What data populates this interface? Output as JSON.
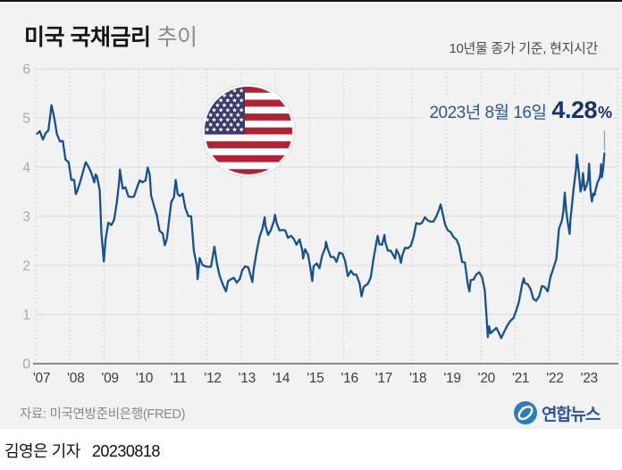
{
  "header": {
    "title_main": "미국 국채금리",
    "title_sub": "추이",
    "subtitle": "10년물 종가 기준, 현지시간"
  },
  "annotation": {
    "date": "2023년 8월 16일",
    "value": "4.28",
    "unit": "%"
  },
  "source": "자료: 미국연방준비은행(FRED)",
  "logo": {
    "text": "연합뉴스"
  },
  "footer": {
    "credit": "김영은 기자",
    "date": "20230818"
  },
  "colors": {
    "background": "#f2f2f2",
    "line": "#17518f",
    "grid": "#dcdcdc",
    "grid_dotted": "#cbcbcb",
    "baseline": "#6a6a6a",
    "ytick_text": "#a8a8a8",
    "xtick_text": "#3e3e3e",
    "pointer": "#9a9a9a",
    "annotation_date": "#2b5597",
    "annotation_value": "#16336e",
    "flag_red": "#B22234",
    "flag_blue": "#3C3B6E",
    "flag_white": "#ffffff",
    "logo_blue": "#2e7cb8",
    "logo_text_blue": "#2a55a0"
  },
  "chart_data": {
    "type": "line",
    "title": "미국 국채금리 추이",
    "subtitle": "10년물 종가 기준, 현지시간",
    "xlabel": "",
    "ylabel": "",
    "units": "%",
    "grid": true,
    "legend": "none",
    "ylim": [
      0,
      6
    ],
    "yticks": [
      0,
      1,
      2,
      3,
      4,
      5,
      6
    ],
    "xticks": [
      "'07",
      "'08",
      "'09",
      "'10",
      "'11",
      "'12",
      "'13",
      "'14",
      "'15",
      "'16",
      "'17",
      "'18",
      "'19",
      "'20",
      "'21",
      "'22",
      "'23"
    ],
    "x_start": 2007.0,
    "x_end": 2024.0,
    "annotation": {
      "x": 2023.62,
      "y": 4.28,
      "label_date": "2023년 8월 16일",
      "label_value": "4.28%"
    },
    "points": [
      [
        2007.04,
        4.68
      ],
      [
        2007.12,
        4.73
      ],
      [
        2007.21,
        4.56
      ],
      [
        2007.29,
        4.69
      ],
      [
        2007.37,
        4.75
      ],
      [
        2007.42,
        5.03
      ],
      [
        2007.46,
        5.26
      ],
      [
        2007.54,
        5.0
      ],
      [
        2007.62,
        4.67
      ],
      [
        2007.71,
        4.52
      ],
      [
        2007.79,
        4.53
      ],
      [
        2007.87,
        4.15
      ],
      [
        2007.96,
        4.1
      ],
      [
        2008.04,
        3.74
      ],
      [
        2008.12,
        3.74
      ],
      [
        2008.17,
        3.45
      ],
      [
        2008.21,
        3.51
      ],
      [
        2008.29,
        3.68
      ],
      [
        2008.37,
        3.88
      ],
      [
        2008.46,
        4.1
      ],
      [
        2008.54,
        4.01
      ],
      [
        2008.62,
        3.89
      ],
      [
        2008.71,
        3.69
      ],
      [
        2008.75,
        3.85
      ],
      [
        2008.79,
        3.81
      ],
      [
        2008.87,
        3.53
      ],
      [
        2008.92,
        2.65
      ],
      [
        2008.99,
        2.08
      ],
      [
        2009.04,
        2.52
      ],
      [
        2009.12,
        2.87
      ],
      [
        2009.21,
        2.82
      ],
      [
        2009.29,
        2.93
      ],
      [
        2009.37,
        3.29
      ],
      [
        2009.44,
        3.72
      ],
      [
        2009.46,
        3.95
      ],
      [
        2009.54,
        3.56
      ],
      [
        2009.62,
        3.59
      ],
      [
        2009.71,
        3.4
      ],
      [
        2009.79,
        3.39
      ],
      [
        2009.87,
        3.4
      ],
      [
        2009.96,
        3.59
      ],
      [
        2010.04,
        3.73
      ],
      [
        2010.12,
        3.69
      ],
      [
        2010.21,
        3.73
      ],
      [
        2010.27,
        3.99
      ],
      [
        2010.33,
        3.85
      ],
      [
        2010.37,
        3.42
      ],
      [
        2010.46,
        3.2
      ],
      [
        2010.54,
        3.01
      ],
      [
        2010.62,
        2.7
      ],
      [
        2010.71,
        2.65
      ],
      [
        2010.77,
        2.41
      ],
      [
        2010.83,
        2.54
      ],
      [
        2010.87,
        2.76
      ],
      [
        2010.96,
        3.29
      ],
      [
        2011.04,
        3.39
      ],
      [
        2011.09,
        3.74
      ],
      [
        2011.15,
        3.45
      ],
      [
        2011.21,
        3.41
      ],
      [
        2011.29,
        3.46
      ],
      [
        2011.37,
        3.17
      ],
      [
        2011.46,
        3.0
      ],
      [
        2011.54,
        3.0
      ],
      [
        2011.62,
        2.3
      ],
      [
        2011.71,
        1.98
      ],
      [
        2011.73,
        1.72
      ],
      [
        2011.79,
        2.15
      ],
      [
        2011.87,
        2.01
      ],
      [
        2011.96,
        1.98
      ],
      [
        2012.04,
        1.97
      ],
      [
        2012.12,
        1.97
      ],
      [
        2012.22,
        2.38
      ],
      [
        2012.29,
        2.05
      ],
      [
        2012.37,
        1.8
      ],
      [
        2012.46,
        1.62
      ],
      [
        2012.56,
        1.47
      ],
      [
        2012.62,
        1.68
      ],
      [
        2012.71,
        1.72
      ],
      [
        2012.79,
        1.75
      ],
      [
        2012.87,
        1.65
      ],
      [
        2012.96,
        1.72
      ],
      [
        2013.04,
        1.91
      ],
      [
        2013.12,
        1.98
      ],
      [
        2013.21,
        1.96
      ],
      [
        2013.29,
        1.76
      ],
      [
        2013.33,
        1.66
      ],
      [
        2013.37,
        1.93
      ],
      [
        2013.46,
        2.3
      ],
      [
        2013.54,
        2.58
      ],
      [
        2013.62,
        2.74
      ],
      [
        2013.69,
        2.98
      ],
      [
        2013.71,
        2.81
      ],
      [
        2013.79,
        2.62
      ],
      [
        2013.87,
        2.72
      ],
      [
        2013.96,
        2.9
      ],
      [
        2013.99,
        3.03
      ],
      [
        2014.04,
        2.86
      ],
      [
        2014.12,
        2.71
      ],
      [
        2014.21,
        2.72
      ],
      [
        2014.29,
        2.71
      ],
      [
        2014.37,
        2.56
      ],
      [
        2014.46,
        2.6
      ],
      [
        2014.54,
        2.54
      ],
      [
        2014.62,
        2.42
      ],
      [
        2014.71,
        2.53
      ],
      [
        2014.79,
        2.3
      ],
      [
        2014.81,
        2.14
      ],
      [
        2014.87,
        2.33
      ],
      [
        2014.96,
        2.21
      ],
      [
        2015.04,
        1.88
      ],
      [
        2015.08,
        1.68
      ],
      [
        2015.12,
        1.98
      ],
      [
        2015.21,
        2.04
      ],
      [
        2015.29,
        1.94
      ],
      [
        2015.37,
        2.2
      ],
      [
        2015.46,
        2.36
      ],
      [
        2015.48,
        2.48
      ],
      [
        2015.54,
        2.32
      ],
      [
        2015.62,
        2.17
      ],
      [
        2015.71,
        2.17
      ],
      [
        2015.79,
        2.07
      ],
      [
        2015.87,
        2.26
      ],
      [
        2015.96,
        2.24
      ],
      [
        2016.04,
        2.09
      ],
      [
        2016.12,
        1.78
      ],
      [
        2016.21,
        1.89
      ],
      [
        2016.29,
        1.81
      ],
      [
        2016.37,
        1.81
      ],
      [
        2016.46,
        1.64
      ],
      [
        2016.52,
        1.37
      ],
      [
        2016.58,
        1.56
      ],
      [
        2016.71,
        1.63
      ],
      [
        2016.79,
        1.76
      ],
      [
        2016.87,
        2.14
      ],
      [
        2016.96,
        2.49
      ],
      [
        2016.99,
        2.6
      ],
      [
        2017.04,
        2.43
      ],
      [
        2017.12,
        2.42
      ],
      [
        2017.19,
        2.62
      ],
      [
        2017.21,
        2.48
      ],
      [
        2017.29,
        2.3
      ],
      [
        2017.37,
        2.3
      ],
      [
        2017.46,
        2.19
      ],
      [
        2017.5,
        2.14
      ],
      [
        2017.54,
        2.32
      ],
      [
        2017.62,
        2.21
      ],
      [
        2017.67,
        2.05
      ],
      [
        2017.71,
        2.2
      ],
      [
        2017.79,
        2.36
      ],
      [
        2017.87,
        2.35
      ],
      [
        2017.96,
        2.4
      ],
      [
        2018.04,
        2.58
      ],
      [
        2018.12,
        2.86
      ],
      [
        2018.21,
        2.84
      ],
      [
        2018.29,
        2.87
      ],
      [
        2018.37,
        2.98
      ],
      [
        2018.46,
        2.91
      ],
      [
        2018.54,
        2.89
      ],
      [
        2018.62,
        2.89
      ],
      [
        2018.71,
        3.0
      ],
      [
        2018.79,
        3.15
      ],
      [
        2018.83,
        3.24
      ],
      [
        2018.87,
        3.12
      ],
      [
        2018.96,
        2.83
      ],
      [
        2019.04,
        2.71
      ],
      [
        2019.12,
        2.68
      ],
      [
        2019.21,
        2.57
      ],
      [
        2019.29,
        2.53
      ],
      [
        2019.37,
        2.4
      ],
      [
        2019.46,
        2.07
      ],
      [
        2019.54,
        2.06
      ],
      [
        2019.62,
        1.63
      ],
      [
        2019.67,
        1.47
      ],
      [
        2019.71,
        1.7
      ],
      [
        2019.79,
        1.71
      ],
      [
        2019.87,
        1.81
      ],
      [
        2019.96,
        1.86
      ],
      [
        2020.04,
        1.76
      ],
      [
        2020.12,
        1.5
      ],
      [
        2020.18,
        0.87
      ],
      [
        2020.21,
        0.54
      ],
      [
        2020.25,
        0.76
      ],
      [
        2020.29,
        0.62
      ],
      [
        2020.37,
        0.67
      ],
      [
        2020.46,
        0.73
      ],
      [
        2020.54,
        0.62
      ],
      [
        2020.6,
        0.52
      ],
      [
        2020.62,
        0.55
      ],
      [
        2020.71,
        0.68
      ],
      [
        2020.79,
        0.79
      ],
      [
        2020.87,
        0.87
      ],
      [
        2020.96,
        0.93
      ],
      [
        2021.04,
        1.08
      ],
      [
        2021.12,
        1.26
      ],
      [
        2021.21,
        1.61
      ],
      [
        2021.26,
        1.74
      ],
      [
        2021.29,
        1.64
      ],
      [
        2021.37,
        1.62
      ],
      [
        2021.46,
        1.52
      ],
      [
        2021.54,
        1.32
      ],
      [
        2021.62,
        1.28
      ],
      [
        2021.71,
        1.37
      ],
      [
        2021.79,
        1.58
      ],
      [
        2021.87,
        1.56
      ],
      [
        2021.96,
        1.47
      ],
      [
        2022.04,
        1.76
      ],
      [
        2022.12,
        1.93
      ],
      [
        2022.21,
        2.13
      ],
      [
        2022.29,
        2.75
      ],
      [
        2022.37,
        2.9
      ],
      [
        2022.42,
        3.12
      ],
      [
        2022.46,
        3.48
      ],
      [
        2022.5,
        3.1
      ],
      [
        2022.54,
        2.9
      ],
      [
        2022.6,
        2.64
      ],
      [
        2022.62,
        2.9
      ],
      [
        2022.71,
        3.52
      ],
      [
        2022.79,
        3.98
      ],
      [
        2022.81,
        4.25
      ],
      [
        2022.87,
        3.89
      ],
      [
        2022.92,
        3.5
      ],
      [
        2022.96,
        3.62
      ],
      [
        2022.99,
        3.88
      ],
      [
        2023.04,
        3.53
      ],
      [
        2023.1,
        3.63
      ],
      [
        2023.14,
        3.75
      ],
      [
        2023.17,
        4.07
      ],
      [
        2023.21,
        3.55
      ],
      [
        2023.25,
        3.3
      ],
      [
        2023.29,
        3.46
      ],
      [
        2023.33,
        3.43
      ],
      [
        2023.37,
        3.57
      ],
      [
        2023.42,
        3.7
      ],
      [
        2023.46,
        3.75
      ],
      [
        2023.5,
        3.86
      ],
      [
        2023.52,
        4.06
      ],
      [
        2023.54,
        3.79
      ],
      [
        2023.58,
        3.96
      ],
      [
        2023.6,
        4.16
      ],
      [
        2023.62,
        4.28
      ]
    ]
  }
}
